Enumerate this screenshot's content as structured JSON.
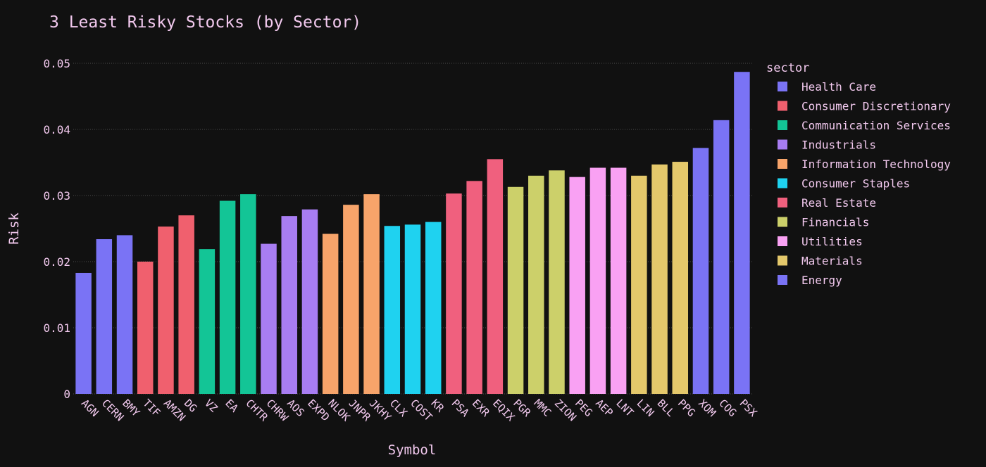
{
  "chart_data": {
    "type": "bar",
    "title": "3 Least Risky Stocks (by Sector)",
    "xlabel": "Symbol",
    "ylabel": "Risk",
    "ylim": [
      0,
      0.05
    ],
    "yticks": [
      {
        "value": 0,
        "label": "0"
      },
      {
        "value": 0.01,
        "label": "0.01"
      },
      {
        "value": 0.02,
        "label": "0.02"
      },
      {
        "value": 0.03,
        "label": "0.03"
      },
      {
        "value": 0.04,
        "label": "0.04"
      },
      {
        "value": 0.05,
        "label": "0.05"
      }
    ],
    "grid": "horizontal",
    "legend_title": "sector",
    "legend_position": "right",
    "series": [
      {
        "name": "Health Care",
        "color": "#7a73f5",
        "x": [
          "AGN",
          "CERN",
          "BMY"
        ],
        "values": [
          0.0183,
          0.0234,
          0.024
        ]
      },
      {
        "name": "Consumer Discretionary",
        "color": "#f0606e",
        "x": [
          "TIF",
          "AMZN",
          "DG"
        ],
        "values": [
          0.02,
          0.0253,
          0.027
        ]
      },
      {
        "name": "Communication Services",
        "color": "#13c596",
        "x": [
          "VZ",
          "EA",
          "CHTR"
        ],
        "values": [
          0.0219,
          0.0292,
          0.0302
        ]
      },
      {
        "name": "Industrials",
        "color": "#a87df2",
        "x": [
          "CHRW",
          "AOS",
          "EXPD"
        ],
        "values": [
          0.0227,
          0.0269,
          0.0279
        ]
      },
      {
        "name": "Information Technology",
        "color": "#f7a46a",
        "x": [
          "NLOK",
          "JNPR",
          "JKHY"
        ],
        "values": [
          0.0242,
          0.0286,
          0.0302
        ]
      },
      {
        "name": "Consumer Staples",
        "color": "#1fd2f0",
        "x": [
          "CLX",
          "COST",
          "KR"
        ],
        "values": [
          0.0254,
          0.0256,
          0.026
        ]
      },
      {
        "name": "Real Estate",
        "color": "#f0607e",
        "x": [
          "PSA",
          "EXR",
          "EQIX"
        ],
        "values": [
          0.0303,
          0.0322,
          0.0355
        ]
      },
      {
        "name": "Financials",
        "color": "#ccd06a",
        "x": [
          "PGR",
          "MMC",
          "ZION"
        ],
        "values": [
          0.0313,
          0.033,
          0.0338
        ]
      },
      {
        "name": "Utilities",
        "color": "#f9a1f3",
        "x": [
          "PEG",
          "AEP",
          "LNT"
        ],
        "values": [
          0.0328,
          0.0342,
          0.0342
        ]
      },
      {
        "name": "Materials",
        "color": "#e4c86b",
        "x": [
          "LIN",
          "BLL",
          "PPG"
        ],
        "values": [
          0.033,
          0.0347,
          0.0351
        ]
      },
      {
        "name": "Energy",
        "color": "#7a73f5",
        "x": [
          "XOM",
          "COG",
          "PSX"
        ],
        "values": [
          0.0372,
          0.0414,
          0.0487
        ]
      }
    ]
  }
}
